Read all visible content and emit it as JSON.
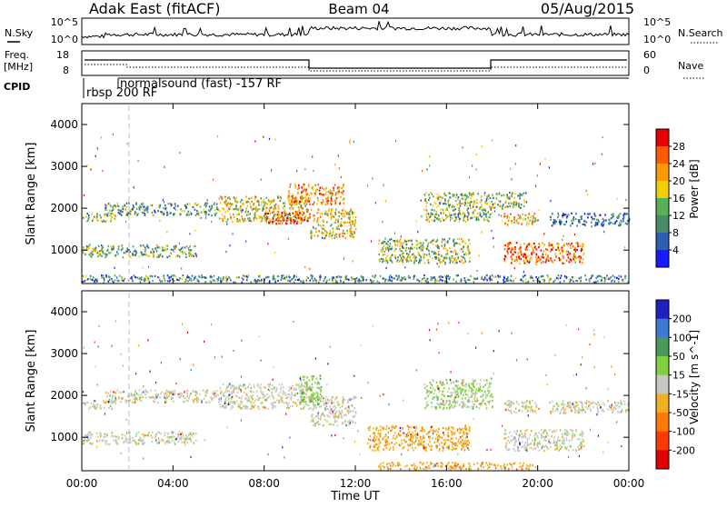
{
  "header": {
    "title": "Adak East (fitACF)",
    "beam": "Beam 04",
    "date": "05/Aug/2015"
  },
  "panels": {
    "nsky": {
      "label": "N.Sky",
      "ticks_left": [
        "10^5",
        "10^0"
      ],
      "ticks_right": [
        "10^5",
        "10^0"
      ],
      "right_label": "N.Search"
    },
    "freq": {
      "label_top": "Freq.",
      "label_bottom": "[MHz]",
      "ticks_left": [
        "18",
        "8"
      ],
      "ticks_right": [
        "60",
        "0"
      ],
      "right_label": "Nave"
    },
    "cpid": {
      "label": "CPID",
      "segments": [
        "rbsp 200 RF",
        "normalsound (fast) -157 RF"
      ]
    }
  },
  "chart_data": [
    {
      "type": "heatmap",
      "title": "",
      "xlabel": "",
      "ylabel": "Slant Range [km]",
      "x_ticks": [
        "00:00",
        "04:00",
        "08:00",
        "12:00",
        "16:00",
        "20:00",
        "00:00"
      ],
      "y_ticks": [
        "1000",
        "2000",
        "3000",
        "4000"
      ],
      "ylim": [
        200,
        4500
      ],
      "colorbar": {
        "label": "Power [dB]",
        "ticks": [
          "4",
          "8",
          "12",
          "16",
          "20",
          "24",
          "28"
        ],
        "range": [
          0,
          30
        ],
        "colors": [
          "#1a1aff",
          "#2d5fb0",
          "#4a8a6a",
          "#58b058",
          "#f0d000",
          "#ff9a00",
          "#ff5a00",
          "#e80000"
        ]
      },
      "echo_bands": [
        {
          "t": [
            0.0,
            1.5
          ],
          "r": [
            1700,
            1900
          ],
          "level": 0.45
        },
        {
          "t": [
            1.0,
            6.0
          ],
          "r": [
            1850,
            2150
          ],
          "level": 0.35
        },
        {
          "t": [
            6.0,
            10.0
          ],
          "r": [
            1700,
            2300
          ],
          "level": 0.55
        },
        {
          "t": [
            8.0,
            10.0
          ],
          "r": [
            1650,
            1950
          ],
          "level": 0.85
        },
        {
          "t": [
            9.0,
            11.5
          ],
          "r": [
            2100,
            2600
          ],
          "level": 0.7
        },
        {
          "t": [
            10.0,
            12.0
          ],
          "r": [
            1300,
            2000
          ],
          "level": 0.6
        },
        {
          "t": [
            0.0,
            5.0
          ],
          "r": [
            850,
            1150
          ],
          "level": 0.4
        },
        {
          "t": [
            13.0,
            17.0
          ],
          "r": [
            700,
            1300
          ],
          "level": 0.45
        },
        {
          "t": [
            15.0,
            18.0
          ],
          "r": [
            1700,
            2400
          ],
          "level": 0.45
        },
        {
          "t": [
            18.0,
            19.5
          ],
          "r": [
            2000,
            2400
          ],
          "level": 0.4
        },
        {
          "t": [
            18.5,
            20.0
          ],
          "r": [
            1600,
            1900
          ],
          "level": 0.6
        },
        {
          "t": [
            18.5,
            22.0
          ],
          "r": [
            700,
            1200
          ],
          "level": 0.8
        },
        {
          "t": [
            20.5,
            24.0
          ],
          "r": [
            1600,
            1900
          ],
          "level": 0.25
        },
        {
          "t": [
            0.0,
            24.0
          ],
          "r": [
            250,
            420
          ],
          "level": 0.3
        }
      ]
    },
    {
      "type": "heatmap",
      "title": "",
      "xlabel": "Time UT",
      "ylabel": "Slant Range [km]",
      "x_ticks": [
        "00:00",
        "04:00",
        "08:00",
        "12:00",
        "16:00",
        "20:00",
        "00:00"
      ],
      "y_ticks": [
        "1000",
        "2000",
        "3000",
        "4000"
      ],
      "ylim": [
        200,
        4500
      ],
      "colorbar": {
        "label": "Velocity [m s^-1]",
        "ticks": [
          "200",
          "100",
          "50",
          "15",
          "-15",
          "-50",
          "-100",
          "-200"
        ],
        "range": [
          -250,
          250
        ],
        "colors": [
          "#2020c0",
          "#3a7ad0",
          "#4a9a5a",
          "#80d040",
          "#c8c8c0",
          "#f0b020",
          "#ff7a00",
          "#ff3a00",
          "#e00000"
        ]
      },
      "echo_bands": [
        {
          "t": [
            0.0,
            1.5
          ],
          "r": [
            1700,
            1900
          ],
          "v": 0
        },
        {
          "t": [
            1.0,
            6.0
          ],
          "r": [
            1850,
            2150
          ],
          "v": 0
        },
        {
          "t": [
            6.0,
            10.0
          ],
          "r": [
            1700,
            2300
          ],
          "v": 0
        },
        {
          "t": [
            9.5,
            10.5
          ],
          "r": [
            1800,
            2500
          ],
          "v": 40
        },
        {
          "t": [
            10.0,
            12.0
          ],
          "r": [
            1300,
            2000
          ],
          "v": 0
        },
        {
          "t": [
            0.0,
            5.0
          ],
          "r": [
            850,
            1150
          ],
          "v": 0
        },
        {
          "t": [
            12.5,
            17.0
          ],
          "r": [
            700,
            1300
          ],
          "v": -40
        },
        {
          "t": [
            15.0,
            18.0
          ],
          "r": [
            1700,
            2400
          ],
          "v": 20
        },
        {
          "t": [
            18.5,
            22.0
          ],
          "r": [
            700,
            1200
          ],
          "v": 0
        },
        {
          "t": [
            18.5,
            20.0
          ],
          "r": [
            1600,
            1900
          ],
          "v": 0
        },
        {
          "t": [
            20.5,
            24.0
          ],
          "r": [
            1600,
            1900
          ],
          "v": 0
        },
        {
          "t": [
            13.0,
            20.0
          ],
          "r": [
            250,
            420
          ],
          "v": -40
        }
      ]
    }
  ]
}
